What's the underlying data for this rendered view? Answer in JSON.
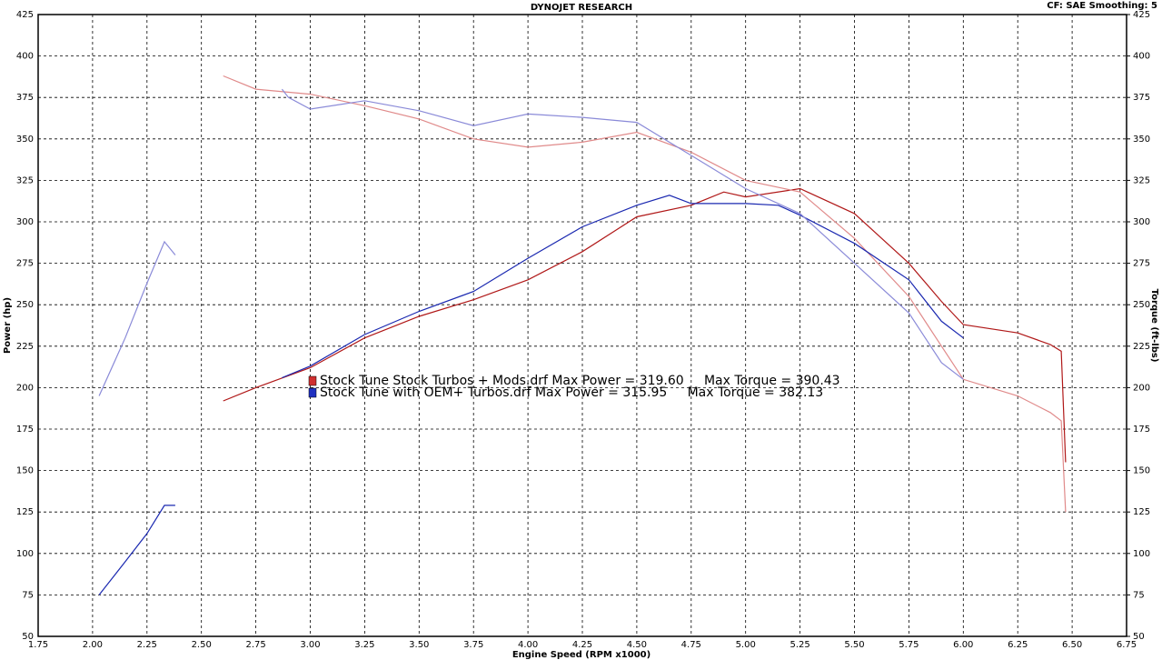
{
  "chart_data": {
    "type": "line",
    "title": "DYNOJET RESEARCH",
    "subtitle": "CF: SAE  Smoothing: 5",
    "x_label": "Engine Speed (RPM x1000)",
    "y_label": "Power (hp)",
    "y2_label": "Torque (ft-lbs)",
    "xlim": [
      1.75,
      6.75
    ],
    "xticks": [
      {
        "value": 1.75,
        "label": "1.75"
      },
      {
        "value": 2,
        "label": "2.00"
      },
      {
        "value": 2.25,
        "label": "2.25"
      },
      {
        "value": 2.5,
        "label": "2.50"
      },
      {
        "value": 2.75,
        "label": "2.75"
      },
      {
        "value": 3,
        "label": "3.00"
      },
      {
        "value": 3.25,
        "label": "3.25"
      },
      {
        "value": 3.5,
        "label": "3.50"
      },
      {
        "value": 3.75,
        "label": "3.75"
      },
      {
        "value": 4,
        "label": "4.00"
      },
      {
        "value": 4.25,
        "label": "4.25"
      },
      {
        "value": 4.5,
        "label": "4.50"
      },
      {
        "value": 4.75,
        "label": "4.75"
      },
      {
        "value": 5,
        "label": "5.00"
      },
      {
        "value": 5.25,
        "label": "5.25"
      },
      {
        "value": 5.5,
        "label": "5.50"
      },
      {
        "value": 5.75,
        "label": "5.75"
      },
      {
        "value": 6,
        "label": "6.00"
      },
      {
        "value": 6.25,
        "label": "6.25"
      },
      {
        "value": 6.5,
        "label": "6.50"
      },
      {
        "value": 6.75,
        "label": "6.75"
      }
    ],
    "ylim": [
      50,
      425
    ],
    "yticks": [
      50,
      75,
      100,
      125,
      150,
      175,
      200,
      225,
      250,
      275,
      300,
      325,
      350,
      375,
      400,
      425
    ],
    "y2lim": [
      50,
      425
    ],
    "y2ticks": [
      50,
      75,
      100,
      125,
      150,
      175,
      200,
      225,
      250,
      275,
      300,
      325,
      350,
      375,
      400,
      425
    ],
    "grid": true,
    "legend": [
      {
        "text": "Stock Tune Stock Turbos + Mods.drf Max Power = 319.60     Max Torque = 390.43",
        "color": "#d03030"
      },
      {
        "text": "Stock Tune with OEM+ Turbos.drf Max Power = 315.95     Max Torque = 382.13",
        "color": "#2030c0"
      }
    ],
    "series": [
      {
        "color": "#b01818",
        "x": [
          2.6,
          2.75,
          3.0,
          3.25,
          3.5,
          3.75,
          4.0,
          4.25,
          4.5,
          4.75,
          4.9,
          5.0,
          5.25,
          5.5,
          5.75,
          5.9,
          6.0,
          6.25,
          6.4,
          6.45,
          6.47
        ],
        "values": [
          192,
          200,
          212,
          230,
          243,
          253,
          265,
          282,
          303,
          310,
          318,
          315,
          320,
          305,
          275,
          252,
          238,
          233,
          226,
          222,
          155
        ]
      },
      {
        "color": "#e08a8a",
        "axis": "y2",
        "x": [
          2.6,
          2.75,
          3.0,
          3.25,
          3.5,
          3.75,
          4.0,
          4.25,
          4.5,
          4.75,
          5.0,
          5.25,
          5.5,
          5.75,
          5.9,
          6.0,
          6.25,
          6.4,
          6.45,
          6.47
        ],
        "values": [
          388,
          380,
          377,
          370,
          362,
          350,
          345,
          348,
          354,
          342,
          325,
          318,
          290,
          255,
          225,
          205,
          195,
          185,
          180,
          125
        ]
      },
      {
        "color": "#1a28b0",
        "x": [
          2.03,
          2.15,
          2.25,
          2.33,
          2.38,
          null,
          2.87,
          3.0,
          3.25,
          3.5,
          3.75,
          4.0,
          4.25,
          4.5,
          4.65,
          4.75,
          5.0,
          5.15,
          5.25,
          5.5,
          5.75,
          5.9,
          6.0
        ],
        "values": [
          75,
          95,
          112,
          129,
          129,
          null,
          206,
          213,
          232,
          246,
          258,
          278,
          297,
          310,
          316,
          311,
          311,
          310,
          304,
          287,
          265,
          240,
          230
        ]
      },
      {
        "color": "#8a8ad8",
        "axis": "y2",
        "x": [
          2.03,
          2.15,
          2.25,
          2.33,
          2.38,
          null,
          2.87,
          2.9,
          3.0,
          3.25,
          3.5,
          3.75,
          4.0,
          4.25,
          4.5,
          4.75,
          5.0,
          5.25,
          5.5,
          5.75,
          5.9,
          6.0
        ],
        "values": [
          195,
          230,
          263,
          288,
          280,
          null,
          380,
          375,
          368,
          373,
          367,
          358,
          365,
          363,
          360,
          340,
          320,
          305,
          275,
          245,
          215,
          205
        ]
      }
    ]
  }
}
